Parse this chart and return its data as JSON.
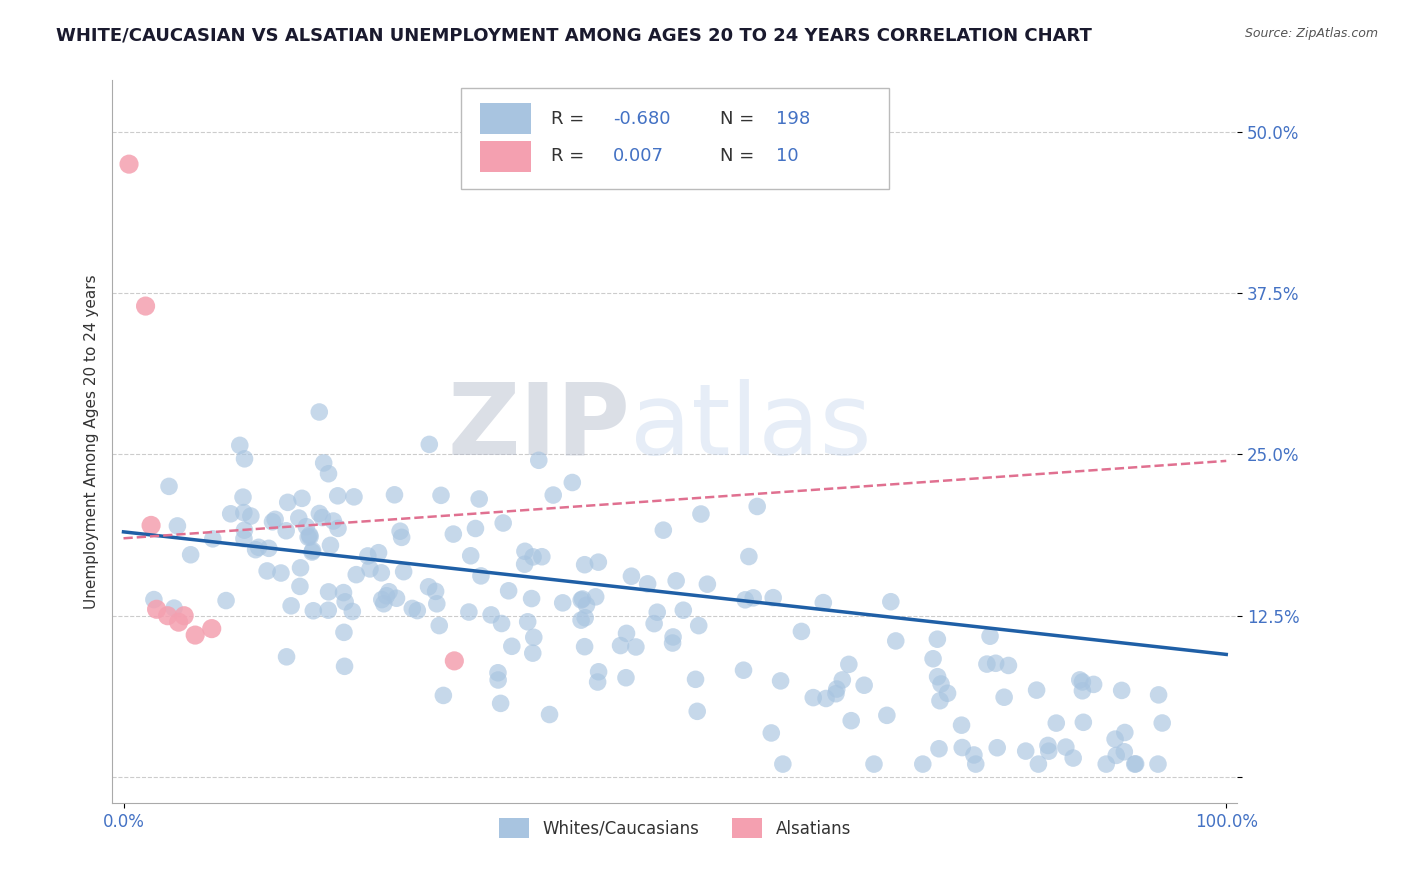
{
  "title": "WHITE/CAUCASIAN VS ALSATIAN UNEMPLOYMENT AMONG AGES 20 TO 24 YEARS CORRELATION CHART",
  "source": "Source: ZipAtlas.com",
  "ylabel": "Unemployment Among Ages 20 to 24 years",
  "xlabel": "",
  "xlim": [
    -0.01,
    1.01
  ],
  "ylim": [
    -0.02,
    0.54
  ],
  "yticks": [
    0.0,
    0.125,
    0.25,
    0.375,
    0.5
  ],
  "ytick_labels": [
    "",
    "12.5%",
    "25.0%",
    "37.5%",
    "50.0%"
  ],
  "xticks": [
    0.0,
    1.0
  ],
  "xtick_labels": [
    "0.0%",
    "100.0%"
  ],
  "blue_R": -0.68,
  "blue_N": 198,
  "pink_R": 0.007,
  "pink_N": 10,
  "legend_labels": [
    "Whites/Caucasians",
    "Alsatians"
  ],
  "blue_color": "#a8c4e0",
  "pink_color": "#f4a0b0",
  "blue_line_color": "#1f5fa6",
  "pink_line_color": "#e07090",
  "legend_text_color": "#4472c4",
  "background_color": "#ffffff",
  "watermark_zip": "ZIP",
  "watermark_atlas": "atlas",
  "title_fontsize": 13,
  "axis_label_fontsize": 11,
  "tick_fontsize": 12,
  "legend_fontsize": 13,
  "seed": 42,
  "blue_line_y0": 0.19,
  "blue_line_y1": 0.095,
  "pink_line_y0": 0.185,
  "pink_line_y1": 0.245
}
